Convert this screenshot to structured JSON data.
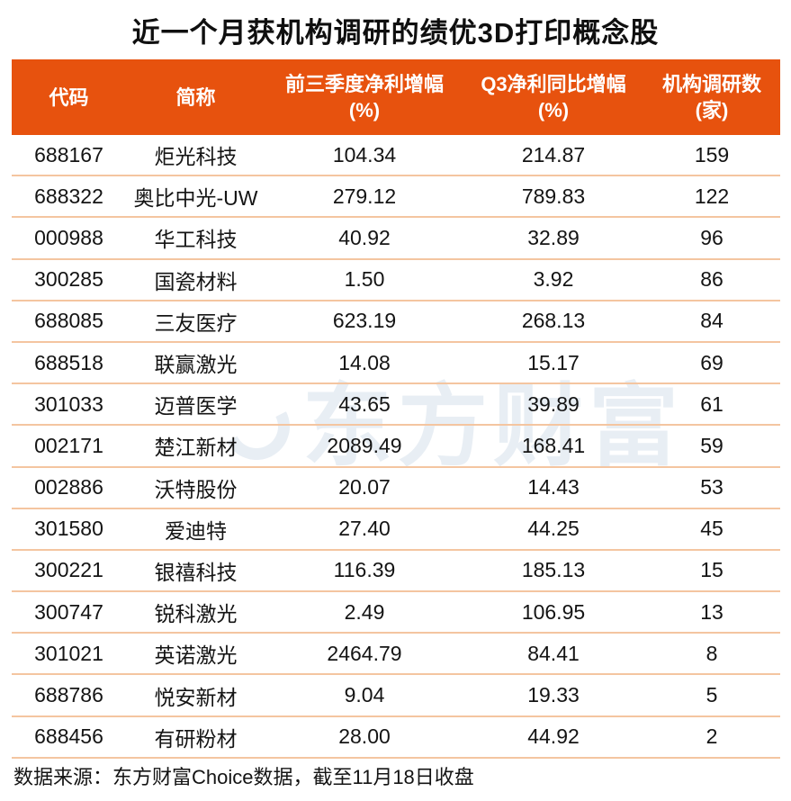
{
  "title": "近一个月获机构调研的绩优3D打印概念股",
  "colors": {
    "header_bg": "#e7520e",
    "header_text": "#ffffff",
    "row_divider": "#f4c5a0",
    "body_text": "#141414",
    "title_text": "#0f0f0f",
    "watermark": "#e8eef4",
    "background": "#ffffff"
  },
  "table": {
    "columns": [
      {
        "line1": "代码",
        "line2": ""
      },
      {
        "line1": "简称",
        "line2": ""
      },
      {
        "line1": "前三季度净利增幅",
        "line2": "(%)"
      },
      {
        "line1": "Q3净利同比增幅",
        "line2": "(%)"
      },
      {
        "line1": "机构调研数",
        "line2": "(家)"
      }
    ],
    "rows": [
      [
        "688167",
        "炬光科技",
        "104.34",
        "214.87",
        "159"
      ],
      [
        "688322",
        "奥比中光-UW",
        "279.12",
        "789.83",
        "122"
      ],
      [
        "000988",
        "华工科技",
        "40.92",
        "32.89",
        "96"
      ],
      [
        "300285",
        "国瓷材料",
        "1.50",
        "3.92",
        "86"
      ],
      [
        "688085",
        "三友医疗",
        "623.19",
        "268.13",
        "84"
      ],
      [
        "688518",
        "联赢激光",
        "14.08",
        "15.17",
        "69"
      ],
      [
        "301033",
        "迈普医学",
        "43.65",
        "39.89",
        "61"
      ],
      [
        "002171",
        "楚江新材",
        "2089.49",
        "168.41",
        "59"
      ],
      [
        "002886",
        "沃特股份",
        "20.07",
        "14.43",
        "53"
      ],
      [
        "301580",
        "爱迪特",
        "27.40",
        "44.25",
        "45"
      ],
      [
        "300221",
        "银禧科技",
        "116.39",
        "185.13",
        "15"
      ],
      [
        "300747",
        "锐科激光",
        "2.49",
        "106.95",
        "13"
      ],
      [
        "301021",
        "英诺激光",
        "2464.79",
        "84.41",
        "8"
      ],
      [
        "688786",
        "悦安新材",
        "9.04",
        "19.33",
        "5"
      ],
      [
        "688456",
        "有研粉材",
        "28.00",
        "44.92",
        "2"
      ]
    ]
  },
  "watermark": {
    "text": "东方财富"
  },
  "footer": {
    "text": "数据来源：东方财富Choice数据，截至11月18日收盘"
  },
  "chart_data": {
    "type": "table",
    "title": "近一个月获机构调研的绩优3D打印概念股",
    "columns": [
      "代码",
      "简称",
      "前三季度净利增幅(%)",
      "Q3净利同比增幅(%)",
      "机构调研数(家)"
    ],
    "rows": [
      [
        "688167",
        "炬光科技",
        104.34,
        214.87,
        159
      ],
      [
        "688322",
        "奥比中光-UW",
        279.12,
        789.83,
        122
      ],
      [
        "000988",
        "华工科技",
        40.92,
        32.89,
        96
      ],
      [
        "300285",
        "国瓷材料",
        1.5,
        3.92,
        86
      ],
      [
        "688085",
        "三友医疗",
        623.19,
        268.13,
        84
      ],
      [
        "688518",
        "联赢激光",
        14.08,
        15.17,
        69
      ],
      [
        "301033",
        "迈普医学",
        43.65,
        39.89,
        61
      ],
      [
        "002171",
        "楚江新材",
        2089.49,
        168.41,
        59
      ],
      [
        "002886",
        "沃特股份",
        20.07,
        14.43,
        53
      ],
      [
        "301580",
        "爱迪特",
        27.4,
        44.25,
        45
      ],
      [
        "300221",
        "银禧科技",
        116.39,
        185.13,
        15
      ],
      [
        "300747",
        "锐科激光",
        2.49,
        106.95,
        13
      ],
      [
        "301021",
        "英诺激光",
        2464.79,
        84.41,
        8
      ],
      [
        "688786",
        "悦安新材",
        9.04,
        19.33,
        5
      ],
      [
        "688456",
        "有研粉材",
        28.0,
        44.92,
        2
      ]
    ],
    "source_note": "数据来源：东方财富Choice数据，截至11月18日收盘"
  }
}
